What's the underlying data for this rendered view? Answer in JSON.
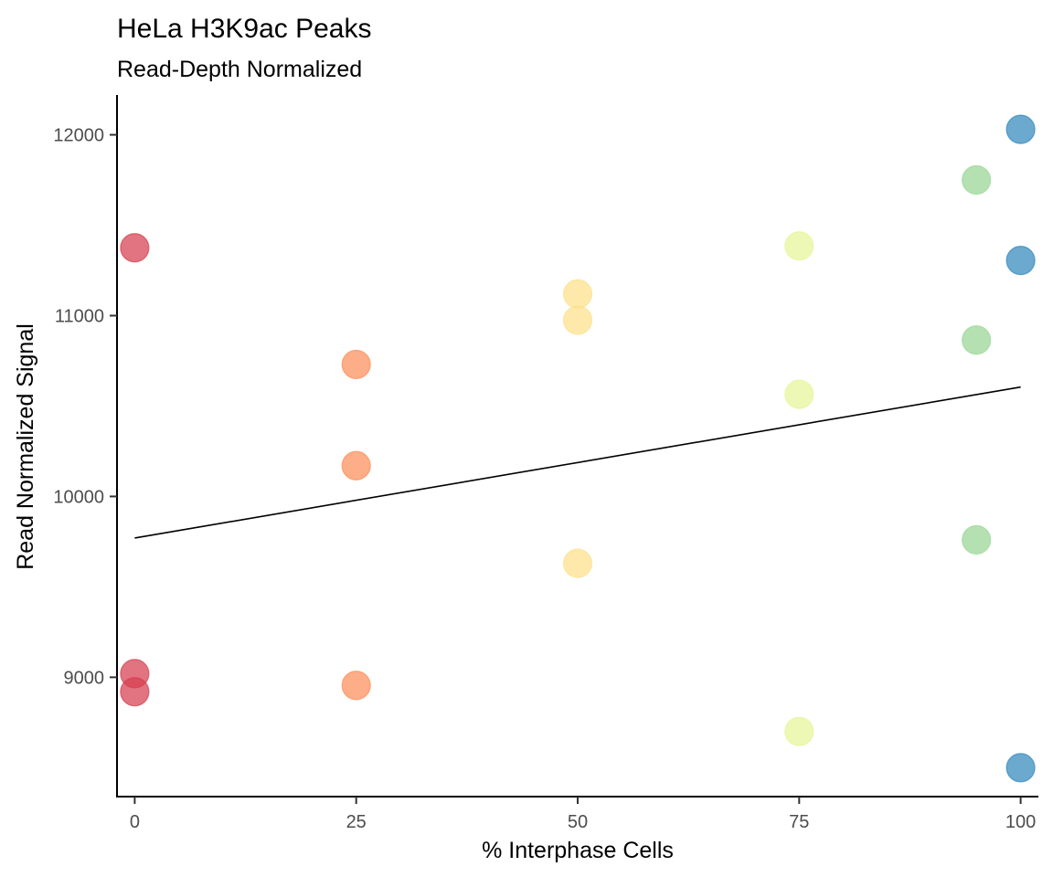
{
  "chart_data": {
    "type": "scatter",
    "title": "HeLa H3K9ac Peaks",
    "subtitle": "Read-Depth Normalized",
    "xlabel": "% Interphase Cells",
    "ylabel": "Read Normalized Signal",
    "xlim": [
      -2,
      102
    ],
    "ylim": [
      8340,
      12220
    ],
    "xticks": [
      0,
      25,
      50,
      75,
      100
    ],
    "yticks": [
      9000,
      10000,
      11000,
      12000
    ],
    "grid": false,
    "legend": "none",
    "colors": {
      "0": "#d53e4f",
      "25": "#fc8d59",
      "50": "#fee08b",
      "75": "#e6f598",
      "95": "#99d594",
      "100": "#3288bd"
    },
    "points": [
      {
        "x": 0,
        "y": 11375
      },
      {
        "x": 0,
        "y": 9020
      },
      {
        "x": 0,
        "y": 8920
      },
      {
        "x": 25,
        "y": 10730
      },
      {
        "x": 25,
        "y": 10170
      },
      {
        "x": 25,
        "y": 8955
      },
      {
        "x": 50,
        "y": 11120
      },
      {
        "x": 50,
        "y": 10975
      },
      {
        "x": 50,
        "y": 9630
      },
      {
        "x": 75,
        "y": 11385
      },
      {
        "x": 75,
        "y": 10565
      },
      {
        "x": 75,
        "y": 8700
      },
      {
        "x": 95,
        "y": 11750
      },
      {
        "x": 95,
        "y": 10865
      },
      {
        "x": 95,
        "y": 9760
      },
      {
        "x": 100,
        "y": 12030
      },
      {
        "x": 100,
        "y": 11305
      },
      {
        "x": 100,
        "y": 8500
      }
    ],
    "trendline": {
      "x": [
        0,
        100
      ],
      "y": [
        9770,
        10605
      ]
    }
  }
}
